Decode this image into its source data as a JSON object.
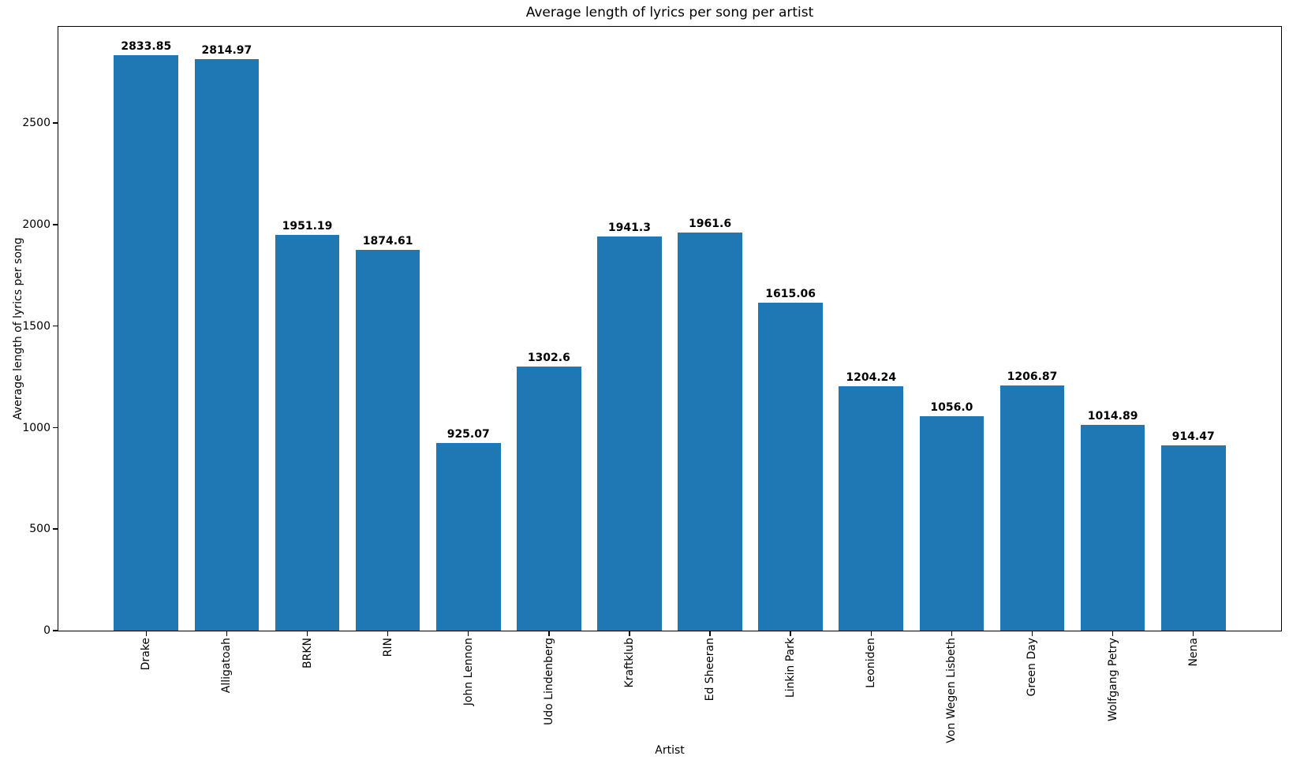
{
  "chart_data": {
    "type": "bar",
    "title": "Average length of lyrics per song per artist",
    "xlabel": "Artist",
    "ylabel": "Average length of lyrics per song",
    "categories": [
      "Drake",
      "Alligatoah",
      "BRKN",
      "RIN",
      "John Lennon",
      "Udo Lindenberg",
      "Kraftklub",
      "Ed Sheeran",
      "Linkin Park",
      "Leoniden",
      "Von Wegen Lisbeth",
      "Green Day",
      "Wolfgang Petry",
      "Nena"
    ],
    "values": [
      2833.85,
      2814.97,
      1951.19,
      1874.61,
      925.07,
      1302.6,
      1941.3,
      1961.6,
      1615.06,
      1204.24,
      1056.0,
      1206.87,
      1014.89,
      914.47
    ],
    "value_labels": [
      "2833.85",
      "2814.97",
      "1951.19",
      "1874.61",
      "925.07",
      "1302.6",
      "1941.3",
      "1961.6",
      "1615.06",
      "1204.24",
      "1056.0",
      "1206.87",
      "1014.89",
      "914.47"
    ],
    "y_ticks": [
      "0",
      "500",
      "1000",
      "1500",
      "2000",
      "2500"
    ],
    "ylim": [
      0,
      2975
    ],
    "bar_color": "#1f77b4",
    "x_tick_rotation": 90,
    "grid": false,
    "legend_position": "none",
    "background_color": "#ffffff"
  }
}
